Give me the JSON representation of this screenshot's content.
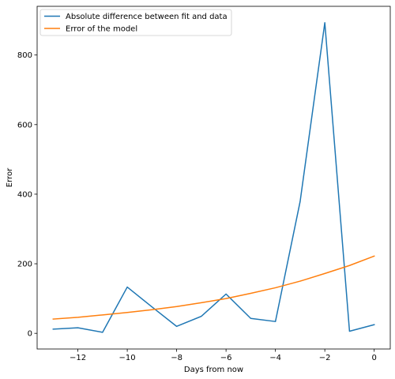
{
  "chart_data": {
    "type": "line",
    "title": "",
    "xlabel": "Days from now",
    "ylabel": "Error",
    "xlim": [
      -13.65,
      0.65
    ],
    "ylim": [
      -45,
      940
    ],
    "xticks": [
      -12,
      -10,
      -8,
      -6,
      -4,
      -2,
      0
    ],
    "xtick_labels": [
      "−12",
      "−10",
      "−8",
      "−6",
      "−4",
      "−2",
      "0"
    ],
    "yticks": [
      0,
      200,
      400,
      600,
      800
    ],
    "ytick_labels": [
      "0",
      "200",
      "400",
      "600",
      "800"
    ],
    "grid": false,
    "legend_position": "top-left",
    "x": [
      -13,
      -12,
      -11,
      -10,
      -9,
      -8,
      -7,
      -6,
      -5,
      -4,
      -3,
      -2,
      -1,
      0
    ],
    "series": [
      {
        "name": "Absolute difference between fit and data",
        "color": "#1f77b4",
        "values": [
          12,
          16,
          3,
          133,
          76,
          20,
          49,
          113,
          43,
          34,
          379,
          893,
          6,
          25
        ]
      },
      {
        "name": "Error of the model",
        "color": "#ff7f0e",
        "values": [
          41,
          46,
          53,
          60,
          68,
          77,
          88,
          100,
          115,
          131,
          150,
          172,
          195,
          222
        ]
      }
    ]
  }
}
